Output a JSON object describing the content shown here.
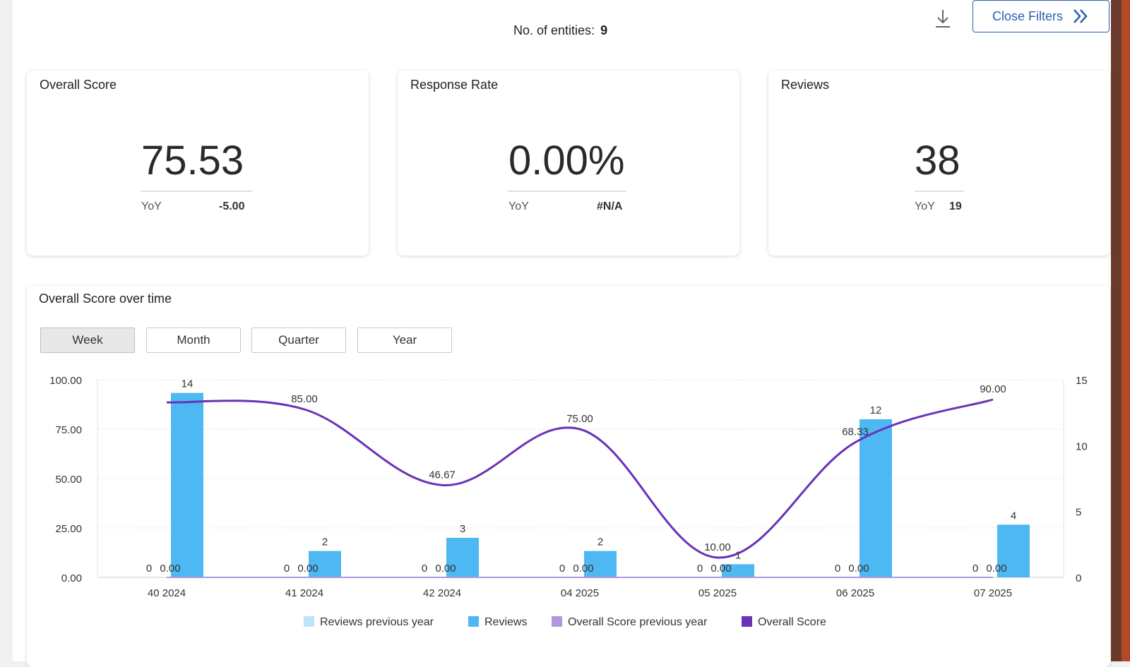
{
  "header": {
    "entities_label": "No. of entities:",
    "entities_value": "9",
    "close_filters_label": "Close Filters"
  },
  "cards": [
    {
      "title": "Overall Score",
      "value": "75.53",
      "yoy_label": "YoY",
      "yoy_value": "-5.00"
    },
    {
      "title": "Response Rate",
      "value": "0.00%",
      "yoy_label": "YoY",
      "yoy_value": "#N/A"
    },
    {
      "title": "Reviews",
      "value": "38",
      "yoy_label": "YoY",
      "yoy_value": "19"
    }
  ],
  "chart_section": {
    "title": "Overall Score over time",
    "period_buttons": [
      "Week",
      "Month",
      "Quarter",
      "Year"
    ],
    "active_period": "Week"
  },
  "colors": {
    "reviews": "#4db8f2",
    "reviews_prev": "#bfe3fb",
    "score": "#6a32b8",
    "score_prev": "#b197e0",
    "brand_blue": "#2b5fb0"
  },
  "chart_data": {
    "type": "bar",
    "categories": [
      "40 2024",
      "41 2024",
      "42 2024",
      "04 2025",
      "05 2025",
      "06 2025",
      "07 2025"
    ],
    "y_left": {
      "ylim": [
        0,
        100
      ],
      "ticks": [
        "0.00",
        "25.00",
        "50.00",
        "75.00",
        "100.00"
      ]
    },
    "y_right": {
      "ylim": [
        0,
        15
      ],
      "ticks": [
        "0",
        "5",
        "10",
        "15"
      ]
    },
    "series": [
      {
        "name": "Reviews previous year",
        "axis": "right",
        "kind": "bar",
        "values": [
          0,
          0,
          0,
          0,
          0,
          0,
          0
        ],
        "labels": [
          "0",
          "0",
          "0",
          "0",
          "0",
          "0",
          "0"
        ]
      },
      {
        "name": "Reviews",
        "axis": "right",
        "kind": "bar",
        "values": [
          14,
          2,
          3,
          2,
          1,
          12,
          4
        ],
        "labels": [
          "14",
          "2",
          "3",
          "2",
          "1",
          "12",
          "4"
        ]
      },
      {
        "name": "Overall Score previous year",
        "axis": "left",
        "kind": "line",
        "values": [
          0,
          0,
          0,
          0,
          0,
          0,
          0
        ],
        "labels": [
          "0.00",
          "0.00",
          "0.00",
          "0.00",
          "0.00",
          "0.00",
          "0.00"
        ]
      },
      {
        "name": "Overall Score",
        "axis": "left",
        "kind": "line",
        "values": [
          null,
          85,
          46.67,
          75,
          10,
          68.33,
          90
        ],
        "labels": [
          "",
          "85.00",
          "46.67",
          "75.00",
          "10.00",
          "68.33",
          "90.00"
        ]
      }
    ],
    "legend_position": "bottom",
    "grid": true
  }
}
